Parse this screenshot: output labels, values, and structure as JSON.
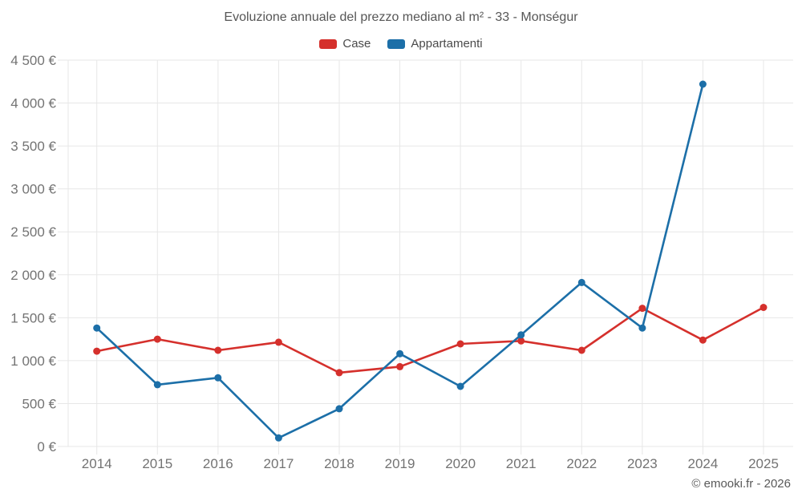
{
  "chart_data": {
    "type": "line",
    "title": "Evoluzione annuale del prezzo mediano al m² - 33 - Monségur",
    "categories": [
      "2014",
      "2015",
      "2016",
      "2017",
      "2018",
      "2019",
      "2020",
      "2021",
      "2022",
      "2023",
      "2024",
      "2025"
    ],
    "series": [
      {
        "name": "Case",
        "color": "#d5302c",
        "values": [
          1110,
          1250,
          1120,
          1215,
          860,
          930,
          1195,
          1230,
          1120,
          1610,
          1240,
          1620
        ]
      },
      {
        "name": "Appartamenti",
        "color": "#1c6fa8",
        "values": [
          1380,
          720,
          800,
          100,
          440,
          1080,
          700,
          1300,
          1910,
          1380,
          4220,
          null
        ]
      }
    ],
    "xlabel": "",
    "ylabel": "",
    "ylim": [
      0,
      4500
    ],
    "y_tick_step": 500,
    "y_tick_labels": [
      "0 €",
      "500 €",
      "1 000 €",
      "1 500 €",
      "2 000 €",
      "2 500 €",
      "3 000 €",
      "3 500 €",
      "4 000 €",
      "4 500 €"
    ],
    "legend_position": "top",
    "grid": true,
    "grid_color": "#e7e7e7",
    "tick_color": "#737373"
  },
  "footer": {
    "copyright": "© emooki.fr - 2026"
  }
}
